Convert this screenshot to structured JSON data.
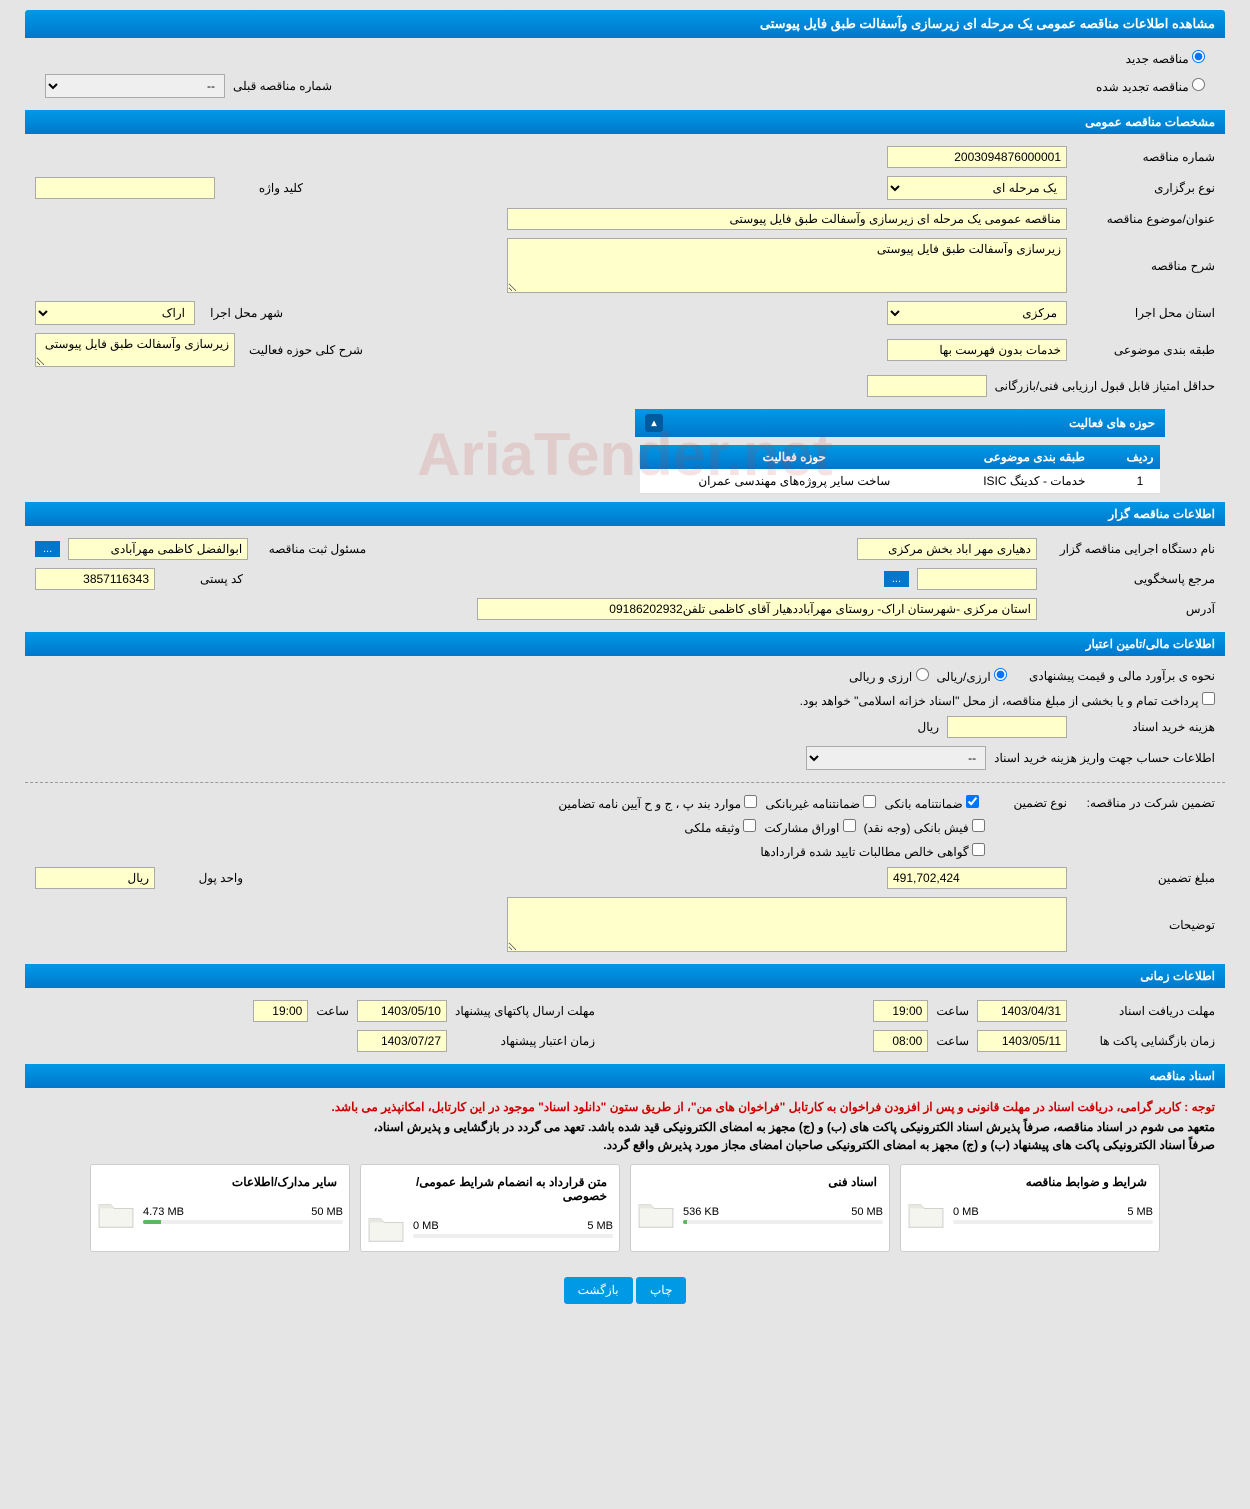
{
  "page_title": "مشاهده اطلاعات مناقصه عمومی یک مرحله ای زیرسازی وآسفالت طبق فایل پیوستی",
  "radio_new": "مناقصه جدید",
  "radio_renewed": "مناقصه تجدید شده",
  "prev_tender_label": "شماره مناقصه قبلی",
  "prev_tender_value": "--",
  "sections": {
    "general": "مشخصات مناقصه عمومی",
    "organizer": "اطلاعات مناقصه گزار",
    "financial": "اطلاعات مالی/تامین اعتبار",
    "timing": "اطلاعات زمانی",
    "documents": "اسناد مناقصه"
  },
  "general": {
    "tender_no_label": "شماره مناقصه",
    "tender_no_value": "2003094876000001",
    "type_label": "نوع برگزاری",
    "type_value": "یک مرحله ای",
    "keyword_label": "کلید واژه",
    "keyword_value": "",
    "title_label": "عنوان/موضوع مناقصه",
    "title_value": "مناقصه عمومی یک مرحله ای زیرسازی وآسفالت طبق فایل پیوستی",
    "desc_label": "شرح مناقصه",
    "desc_value": "زیرسازی وآسفالت طبق فایل پیوستی",
    "province_label": "استان محل اجرا",
    "province_value": "مرکزی",
    "city_label": "شهر محل اجرا",
    "city_value": "اراک",
    "subject_cat_label": "طبقه بندی موضوعی",
    "subject_cat_value": "خدمات بدون فهرست بها",
    "activity_desc_label": "شرح کلی حوزه فعالیت",
    "activity_desc_value": "زیرسازی وآسفالت طبق فایل پیوستی",
    "min_score_label": "حداقل امتیاز قابل قبول ارزیابی فنی/بازرگانی",
    "min_score_value": ""
  },
  "activity": {
    "header": "حوزه های فعالیت",
    "col_row": "ردیف",
    "col_subject": "طبقه بندی موضوعی",
    "col_field": "حوزه فعالیت",
    "rows": [
      {
        "idx": "1",
        "subject": "خدمات - کدینگ ISIC",
        "field": "ساخت سایر پروژه‌های مهندسی عمران"
      }
    ]
  },
  "organizer": {
    "exec_label": "نام دستگاه اجرایی مناقصه گزار",
    "exec_value": "دهیاری مهر اباد بخش مرکزی",
    "registrar_label": "مسئول ثبت مناقصه",
    "registrar_value": "ابوالفضل کاظمی مهرآبادی",
    "more_btn": "...",
    "contact_label": "مرجع پاسخگویی",
    "contact_value": "",
    "postal_label": "کد پستی",
    "postal_value": "3857116343",
    "address_label": "آدرس",
    "address_value": "استان مرکزی -شهرستان اراک- روستای مهرآباددهیار آقای کاظمی تلفن09186202932"
  },
  "financial": {
    "method_label": "نحوه ی برآورد مالی و قیمت پیشنهادی",
    "radio_rial": "ارزی/ریالی",
    "radio_currency": "ارزی و ریالی",
    "treasury_note": "پرداخت تمام و یا بخشی از مبلغ مناقصه، از محل \"اسناد خزانه اسلامی\" خواهد بود.",
    "doc_cost_label": "هزینه خرید اسناد",
    "doc_cost_value": "",
    "doc_cost_unit": "ریال",
    "account_label": "اطلاعات حساب جهت واریز هزینه خرید اسناد",
    "account_value": "--",
    "guarantee_label": "تضمین شرکت در مناقصه:",
    "guarantee_type_label": "نوع تضمین",
    "chk_bank_guarantee": "ضمانتنامه بانکی",
    "chk_nonbank_guarantee": "ضمانتنامه غیربانکی",
    "chk_items": "موارد بند پ ، ج و ح آیین نامه تضامین",
    "chk_cash": "فیش بانکی (وجه نقد)",
    "chk_bonds": "اوراق مشارکت",
    "chk_property": "وثیقه ملکی",
    "chk_certificate": "گواهی خالص مطالبات تایید شده قراردادها",
    "guarantee_amount_label": "مبلغ تضمین",
    "guarantee_amount_value": "491,702,424",
    "currency_label": "واحد پول",
    "currency_value": "ریال",
    "notes_label": "توضیحات",
    "notes_value": ""
  },
  "timing": {
    "doc_deadline_label": "مهلت دریافت اسناد",
    "doc_deadline_date": "1403/04/31",
    "doc_deadline_time_label": "ساعت",
    "doc_deadline_time": "19:00",
    "packet_send_label": "مهلت ارسال پاکتهای پیشنهاد",
    "packet_send_date": "1403/05/10",
    "packet_send_time_label": "ساعت",
    "packet_send_time": "19:00",
    "opening_label": "زمان بازگشایی پاکت ها",
    "opening_date": "1403/05/11",
    "opening_time_label": "ساعت",
    "opening_time": "08:00",
    "validity_label": "زمان اعتبار پیشنهاد",
    "validity_date": "1403/07/27"
  },
  "documents": {
    "notice_red": "توجه : کاربر گرامی، دریافت اسناد در مهلت قانونی و پس از افزودن فراخوان به کارتابل \"فراخوان های من\"، از طریق ستون \"دانلود اسناد\" موجود در این کارتابل، امکانپذیر می باشد.",
    "notice1": "متعهد می شوم در اسناد مناقصه، صرفاً پذیرش اسناد الکترونیکی پاکت های (ب) و (ج) مجهز به امضای الکترونیکی قید شده باشد. تعهد می گردد در بازگشایی و پذیرش اسناد،",
    "notice2": "صرفاً اسناد الکترونیکی پاکت های پیشنهاد (ب) و (ج) مجهز به امضای الکترونیکی صاحبان امضای مجاز مورد پذیرش واقع گردد.",
    "files": [
      {
        "title": "شرایط و ضوابط مناقصه",
        "used": "0 MB",
        "total": "5 MB",
        "pct": 0
      },
      {
        "title": "اسناد فنی",
        "used": "536 KB",
        "total": "50 MB",
        "pct": 2
      },
      {
        "title": "متن قرارداد به انضمام شرایط عمومی/خصوصی",
        "used": "0 MB",
        "total": "5 MB",
        "pct": 0
      },
      {
        "title": "سایر مدارک/اطلاعات",
        "used": "4.73 MB",
        "total": "50 MB",
        "pct": 9
      }
    ]
  },
  "buttons": {
    "print": "چاپ",
    "back": "بازگشت"
  },
  "watermark": "AriaTender.net",
  "colors": {
    "header_bg": "#0099e6",
    "yellow_bg": "#ffffcc",
    "page_bg": "#e5e5e5"
  }
}
